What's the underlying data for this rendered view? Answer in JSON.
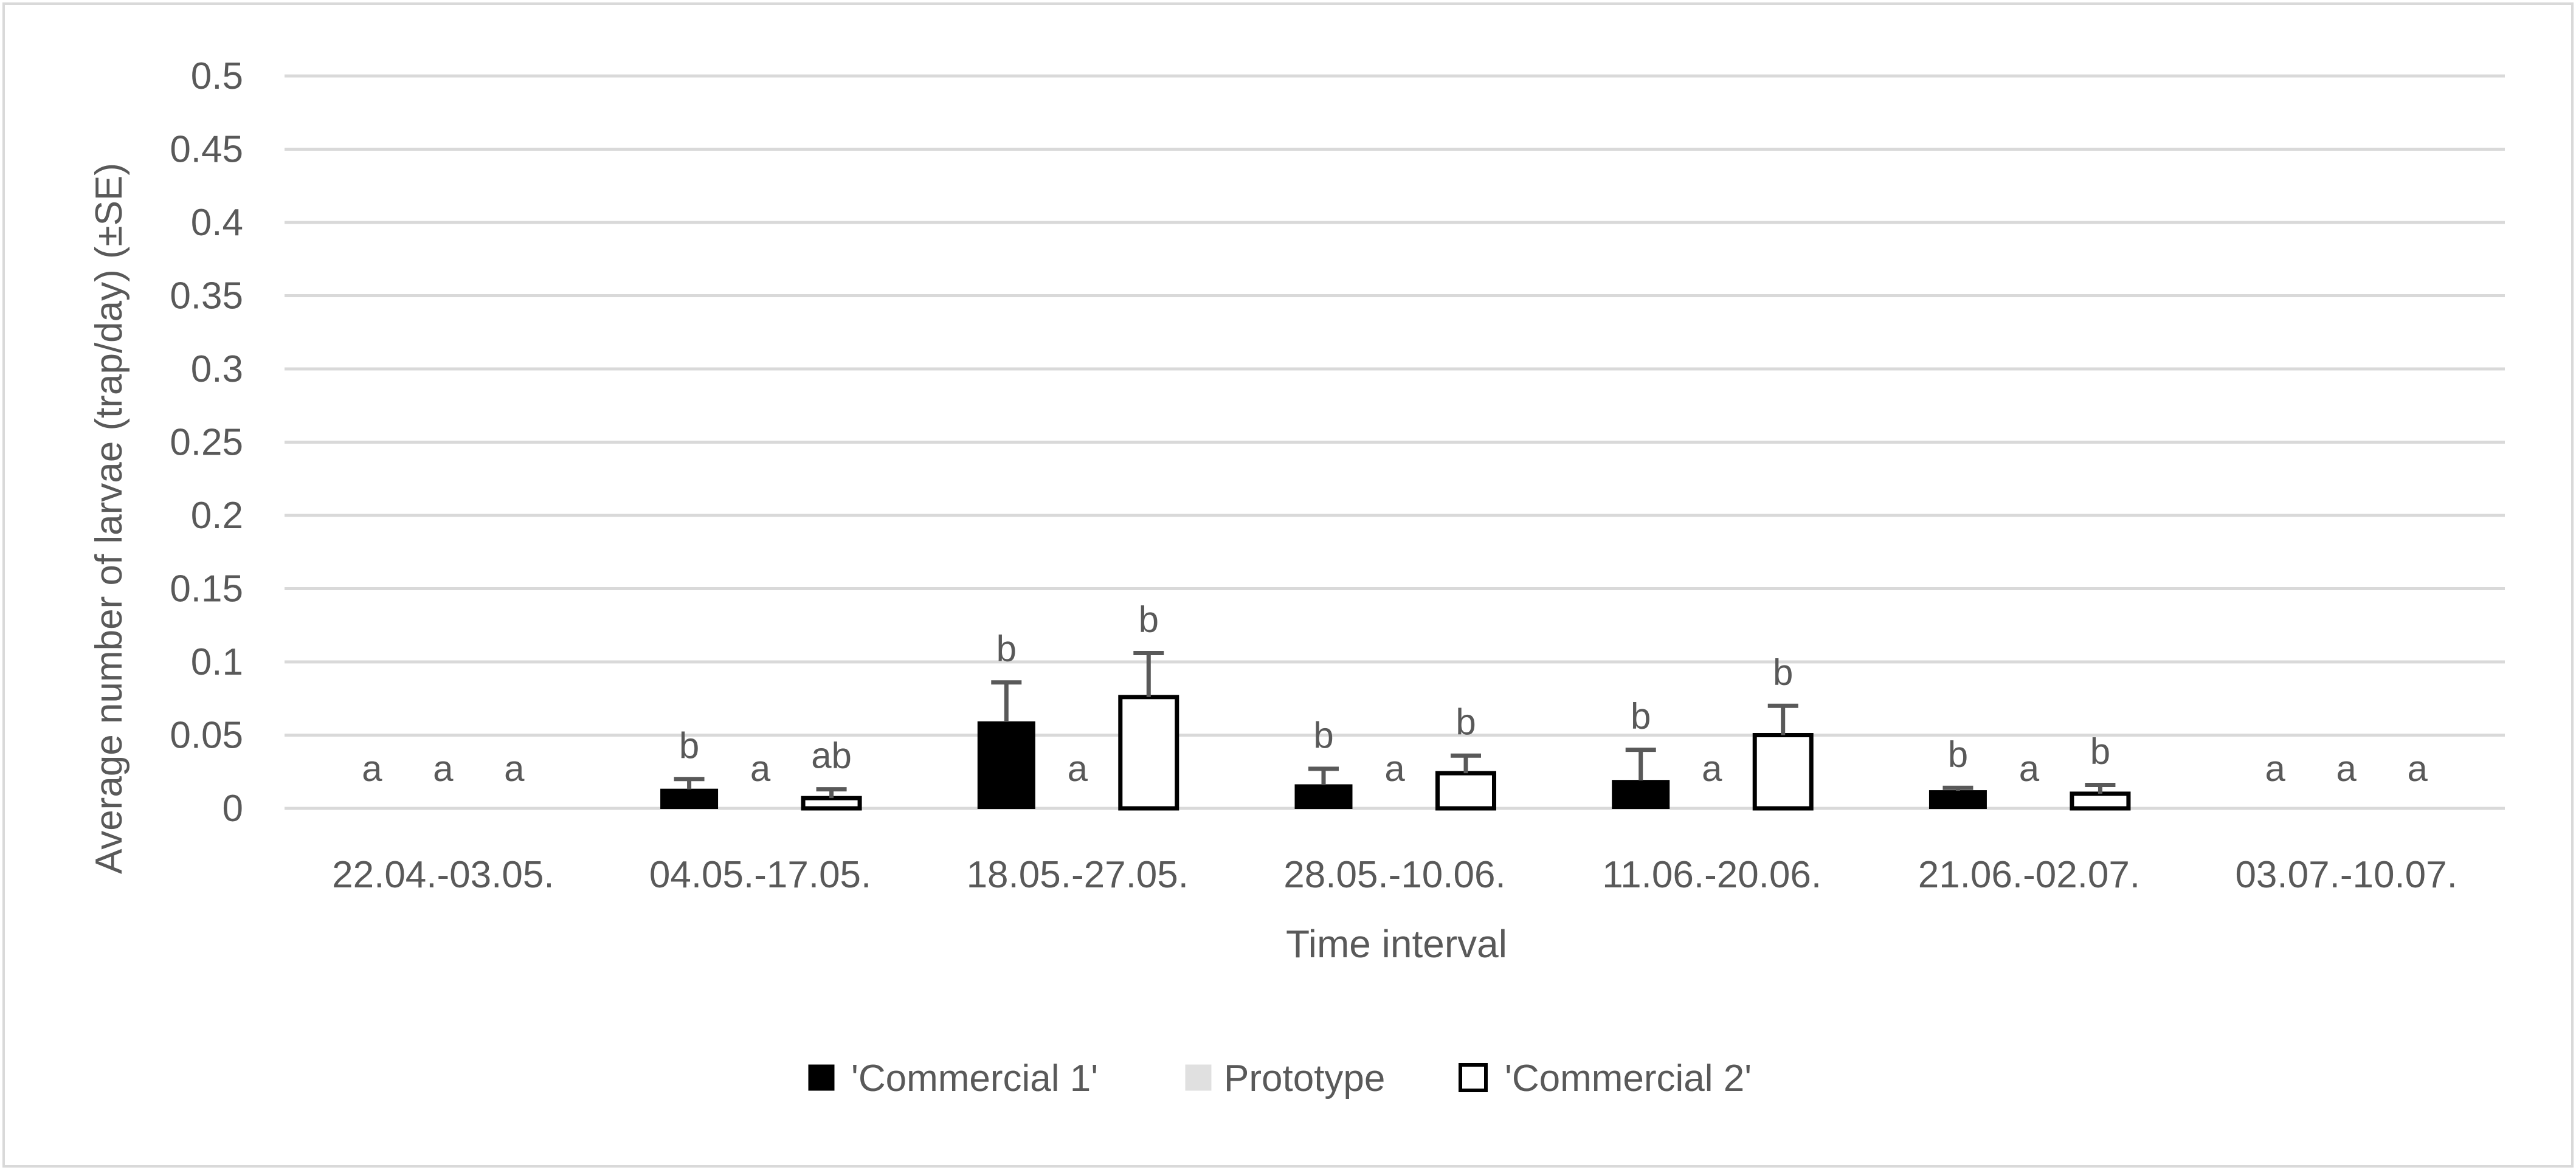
{
  "chart_data": {
    "type": "bar",
    "title": "",
    "xlabel": "Time interval",
    "ylabel": "Average number of larvae (trap/day) (±SE)",
    "ylim": [
      0,
      0.5
    ],
    "yticks": [
      "0",
      "0.05",
      "0.1",
      "0.15",
      "0.2",
      "0.25",
      "0.3",
      "0.35",
      "0.4",
      "0.45",
      "0.5"
    ],
    "grid": true,
    "legend_position": "bottom",
    "categories": [
      "22.04.-03.05.",
      "04.05.-17.05.",
      "18.05.-27.05.",
      "28.05.-10.06.",
      "11.06.-20.06.",
      "21.06.-02.07.",
      "03.07.-10.07."
    ],
    "series": [
      {
        "name": "'Commercial 1'",
        "fill": "#000000",
        "stroke": "#000000",
        "values": [
          0,
          0.013,
          0.059,
          0.016,
          0.019,
          0.012,
          0
        ],
        "errors": [
          0,
          0.007,
          0.027,
          0.011,
          0.021,
          0.002,
          0
        ],
        "letters": [
          "a",
          "b",
          "b",
          "b",
          "b",
          "b",
          "a"
        ]
      },
      {
        "name": "Prototype",
        "fill": "#e0e0e0",
        "stroke": "#e0e0e0",
        "values": [
          0,
          0,
          0,
          0,
          0,
          0,
          0
        ],
        "errors": [
          0,
          0,
          0,
          0,
          0,
          0,
          0
        ],
        "letters": [
          "a",
          "a",
          "a",
          "a",
          "a",
          "a",
          "a"
        ]
      },
      {
        "name": "'Commercial 2'",
        "fill": "#ffffff",
        "stroke": "#000000",
        "values": [
          0,
          0.007,
          0.076,
          0.024,
          0.05,
          0.01,
          0
        ],
        "errors": [
          0,
          0.006,
          0.03,
          0.012,
          0.02,
          0.006,
          0
        ],
        "letters": [
          "a",
          "ab",
          "b",
          "b",
          "b",
          "b",
          "a"
        ]
      }
    ]
  }
}
